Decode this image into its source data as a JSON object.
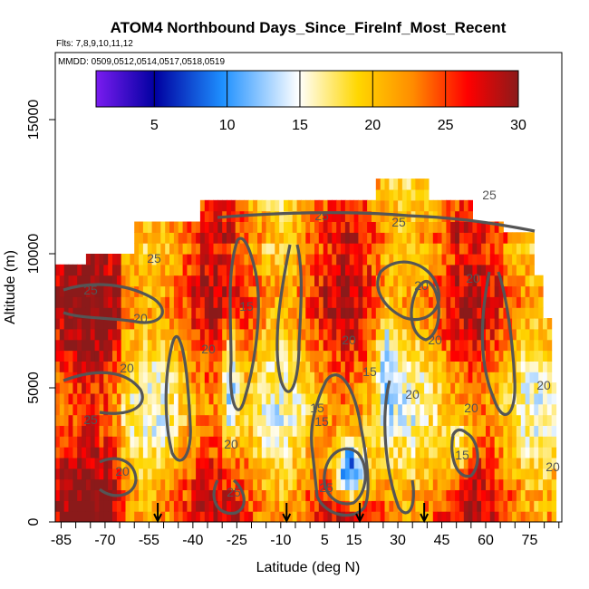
{
  "chart_data": {
    "type": "heatmap",
    "title": "ATOM4 Northbound Days_Since_FireInf_Most_Recent",
    "flights_note": "Flts: 7,8,9,10,11,12",
    "dates_note": "MMDD: 0509,0512,0514,0517,0518,0519",
    "xlabel": "Latitude (deg N)",
    "ylabel": "Altitude (m)",
    "xlim": [
      -87,
      86
    ],
    "ylim": [
      0,
      17500
    ],
    "x_ticks": [
      "-85",
      "-70",
      "-55",
      "-40",
      "-25",
      "-10",
      "5",
      "15",
      "30",
      "45",
      "60",
      "75"
    ],
    "y_ticks": [
      "0",
      "5000",
      "10000",
      "15000"
    ],
    "colorbar": {
      "range": [
        1,
        30
      ],
      "ticks": [
        "5",
        "10",
        "15",
        "20",
        "25",
        "30"
      ],
      "colors": [
        "#7a1cf0",
        "#0000a0",
        "#1e90ff",
        "#ffffff",
        "#ffd700",
        "#ff8c00",
        "#ff0000",
        "#8b1a1a"
      ]
    },
    "contour_levels": [
      5,
      10,
      15,
      20,
      25
    ],
    "contour_labels": [
      "25",
      "25",
      "25",
      "20",
      "20",
      "15",
      "20",
      "15",
      "20",
      "20",
      "25",
      "25",
      "15",
      "15",
      "20",
      "20",
      "20",
      "25",
      "20",
      "25",
      "20",
      "20",
      "15",
      "25",
      "20",
      "20"
    ],
    "flight_markers_lat": [
      -52,
      -8,
      17,
      39
    ]
  }
}
